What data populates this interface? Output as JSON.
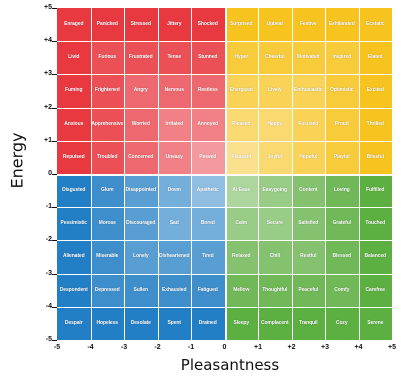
{
  "chart_data": {
    "type": "heatmap",
    "xlabel": "Pleasantness",
    "ylabel": "Energy",
    "xlim": [
      -5,
      5
    ],
    "ylim": [
      -5,
      5
    ],
    "x_ticks": [
      "-5",
      "-4",
      "-3",
      "-2",
      "-1",
      "0",
      "+1",
      "+2",
      "+3",
      "+4",
      "+5"
    ],
    "y_ticks": [
      "+5",
      "+4",
      "+3",
      "+2",
      "+1",
      "0",
      "-1",
      "-2",
      "-3",
      "-4",
      "-5"
    ],
    "quadrant_colors": {
      "top_left": "#e8343c",
      "top_right": "#f7c21a",
      "bottom_left": "#1f7cc4",
      "bottom_right": "#59ad3d"
    },
    "rows": [
      [
        "Enraged",
        "Panicked",
        "Stressed",
        "Jittery",
        "Shocked",
        "Surprised",
        "Upbeat",
        "Festive",
        "Exhilarated",
        "Ecstatic"
      ],
      [
        "Livid",
        "Furious",
        "Frustrated",
        "Tense",
        "Stunned",
        "Hyper",
        "Cheerful",
        "Motivated",
        "Inspired",
        "Elated"
      ],
      [
        "Fuming",
        "Frightened",
        "Angry",
        "Nervous",
        "Restless",
        "Energized",
        "Lively",
        "Enthusiastic",
        "Optimistic",
        "Excited"
      ],
      [
        "Anxious",
        "Apprehensive",
        "Worried",
        "Irritated",
        "Annoyed",
        "Pleased",
        "Happy",
        "Focused",
        "Proud",
        "Thrilled"
      ],
      [
        "Repulsed",
        "Troubled",
        "Concerned",
        "Uneasy",
        "Peeved",
        "Pleasant",
        "Joyful",
        "Hopeful",
        "Playful",
        "Blissful"
      ],
      [
        "Disgusted",
        "Glum",
        "Disappointed",
        "Down",
        "Apathetic",
        "At Ease",
        "Easygoing",
        "Content",
        "Loving",
        "Fulfilled"
      ],
      [
        "Pessimistic",
        "Morose",
        "Discouraged",
        "Sad",
        "Bored",
        "Calm",
        "Secure",
        "Satisfied",
        "Grateful",
        "Touched"
      ],
      [
        "Alienated",
        "Miserable",
        "Lonely",
        "Disheartened",
        "Tired",
        "Relaxed",
        "Chill",
        "Restful",
        "Blessed",
        "Balanced"
      ],
      [
        "Despondent",
        "Depressed",
        "Sullen",
        "Exhausted",
        "Fatigued",
        "Mellow",
        "Thoughtful",
        "Peaceful",
        "Comfy",
        "Carefree"
      ],
      [
        "Despair",
        "Hopeless",
        "Desolate",
        "Spent",
        "Drained",
        "Sleepy",
        "Complacent",
        "Tranquil",
        "Cozy",
        "Serene"
      ]
    ]
  }
}
